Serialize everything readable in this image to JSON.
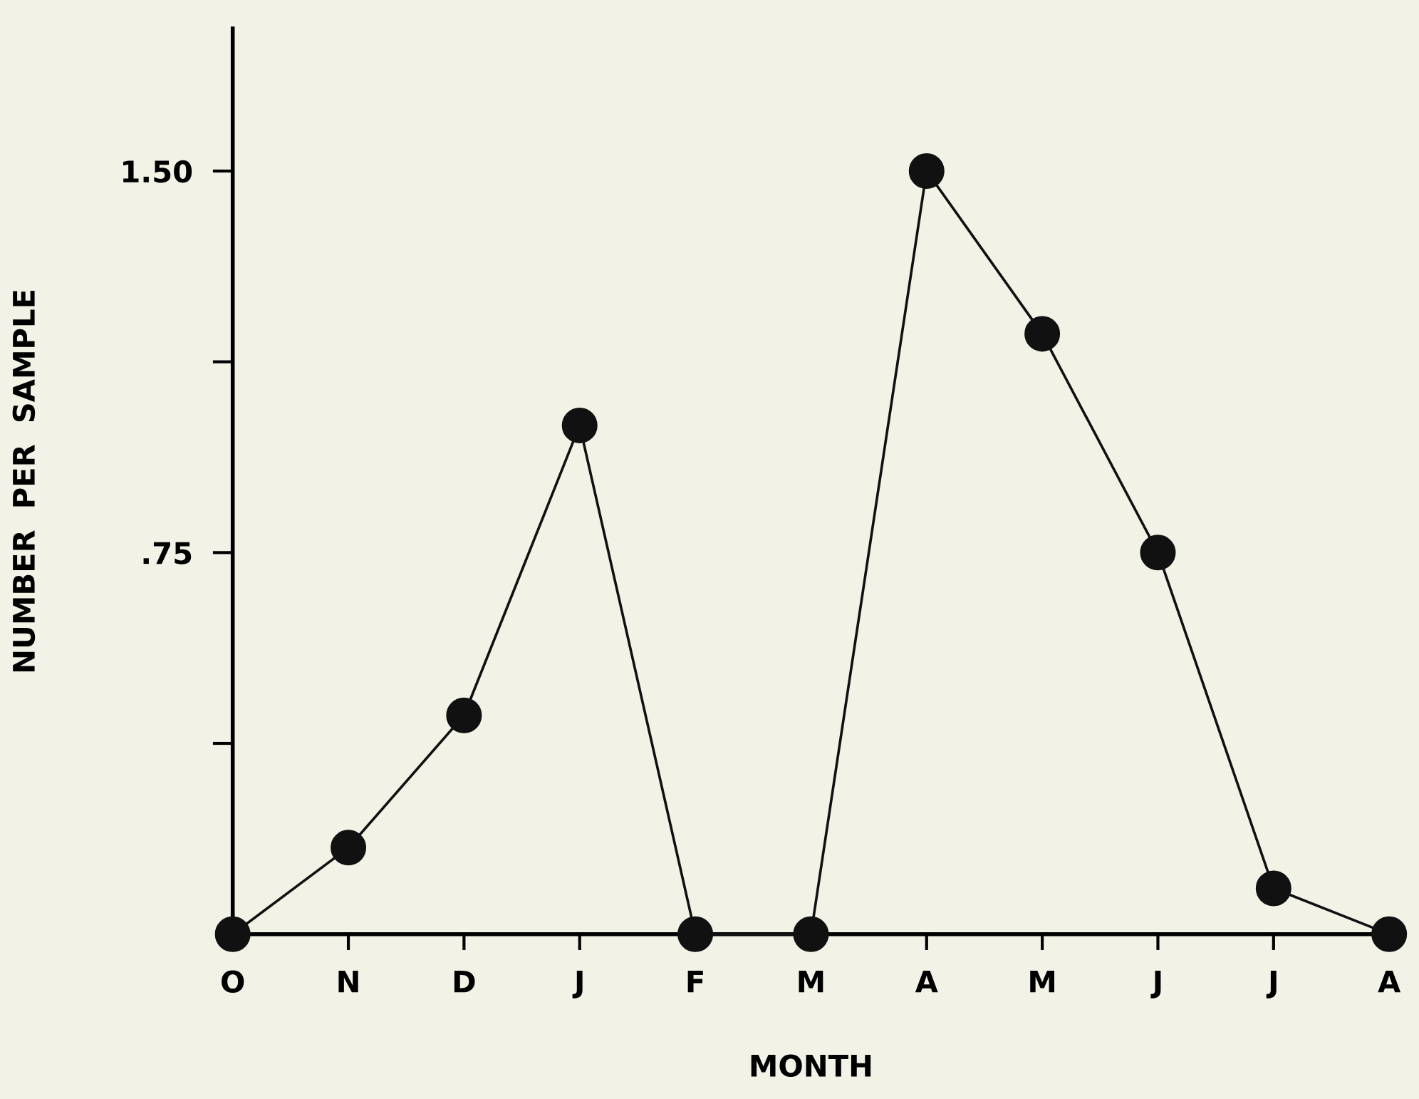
{
  "chart_data": {
    "type": "line",
    "xlabel": "MONTH",
    "ylabel": "NUMBER  PER  SAMPLE",
    "categories": [
      "O",
      "N",
      "D",
      "J",
      "F",
      "M",
      "A",
      "M",
      "J",
      "J",
      "A"
    ],
    "series": [
      {
        "color": "#111111",
        "values": [
          0,
          0.17,
          0.43,
          1.0,
          0,
          0,
          1.5,
          1.18,
          0.75,
          0.09,
          0
        ]
      }
    ],
    "ylim": [
      0,
      1.78
    ],
    "yticks": [
      {
        "value": 0.375,
        "label": null
      },
      {
        "value": 0.75,
        "label": ".75"
      },
      {
        "value": 1.125,
        "label": null
      },
      {
        "value": 1.5,
        "label": "1.50"
      }
    ],
    "marker": "circle",
    "line_style": "solid",
    "grid": false,
    "legend": false
  }
}
